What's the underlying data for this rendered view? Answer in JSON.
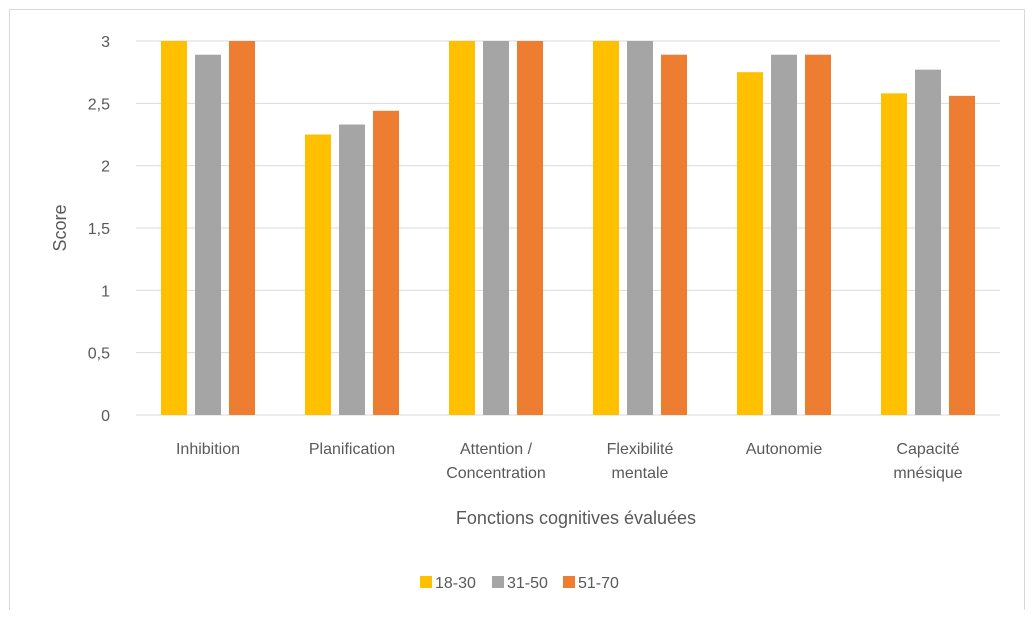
{
  "chart_data": {
    "type": "bar",
    "categories": [
      [
        "Inhibition"
      ],
      [
        "Planification"
      ],
      [
        "Attention /",
        "Concentration"
      ],
      [
        "Flexibilité",
        "mentale"
      ],
      [
        "Autonomie"
      ],
      [
        "Capacité",
        "mnésique"
      ]
    ],
    "series": [
      {
        "name": "18-30",
        "color": "#FFC000",
        "values": [
          3.0,
          2.25,
          3.0,
          3.0,
          2.75,
          2.58
        ]
      },
      {
        "name": "31-50",
        "color": "#A5A5A5",
        "values": [
          2.89,
          2.33,
          3.0,
          3.0,
          2.89,
          2.77
        ]
      },
      {
        "name": "51-70",
        "color": "#ED7D31",
        "values": [
          3.0,
          2.44,
          3.0,
          2.89,
          2.89,
          2.56
        ]
      }
    ],
    "xlabel": "Fonctions cognitives évaluées",
    "ylabel": "Score",
    "ylim": [
      0,
      3
    ],
    "yticks": [
      0,
      0.5,
      1,
      1.5,
      2,
      2.5,
      3
    ],
    "ytick_labels": [
      "0",
      "0,5",
      "1",
      "1,5",
      "2",
      "2,5",
      "3"
    ],
    "grid": true,
    "legend_position": "bottom"
  }
}
